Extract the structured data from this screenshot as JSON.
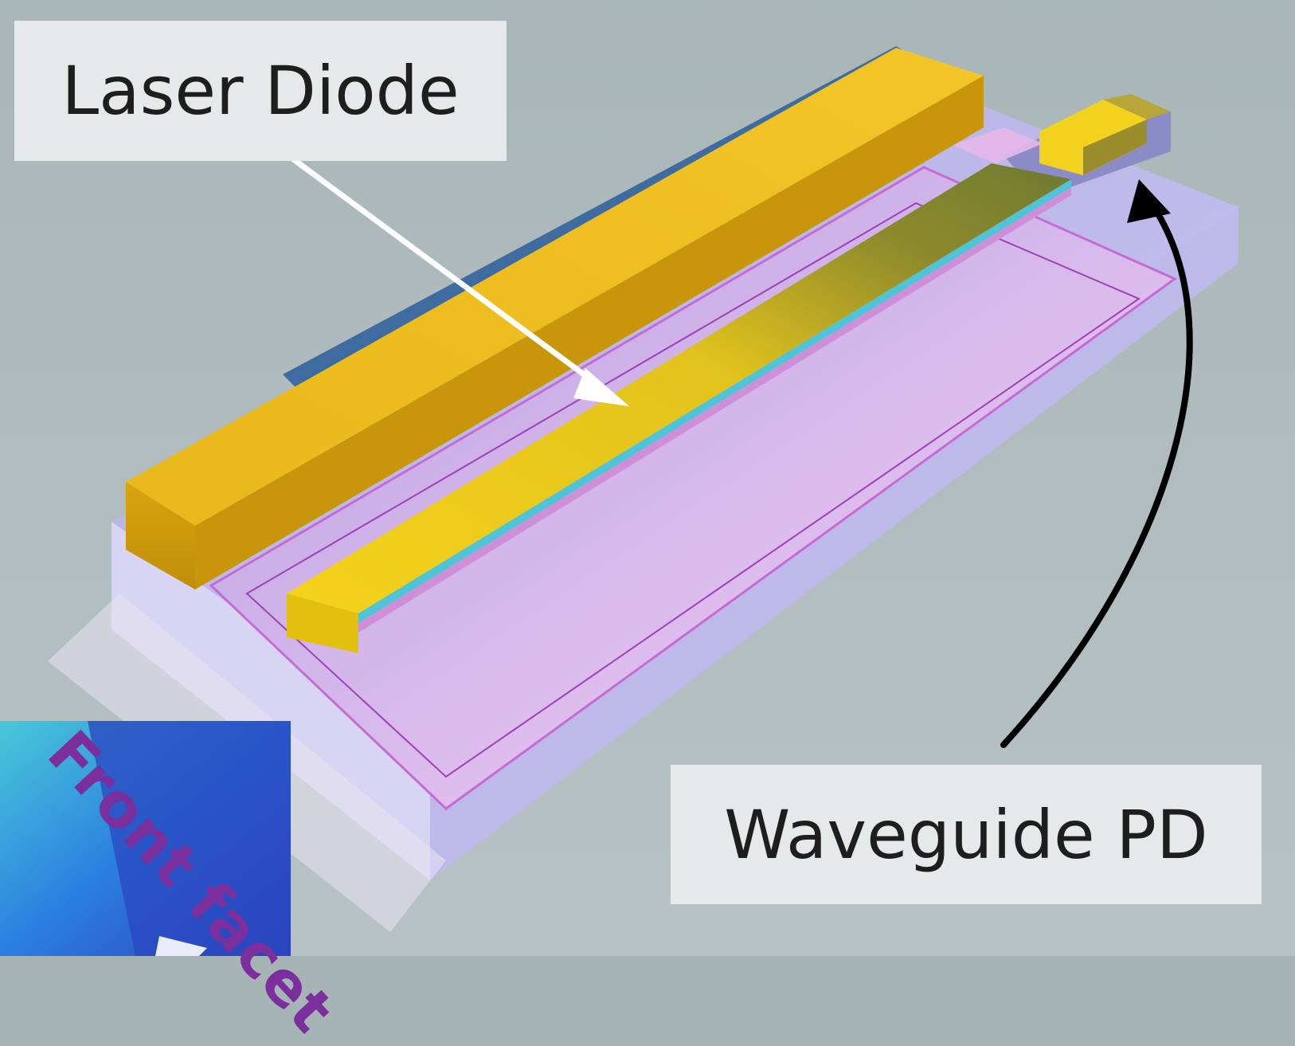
{
  "labels": {
    "laser_diode": "Laser Diode",
    "waveguide_pd": "Waveguide PD",
    "front_facet": "Front facet"
  },
  "colors": {
    "background": "#a6b4b6",
    "gold_electrode": "#e8b416",
    "substrate_lavender": "#c8c4ec",
    "waveguide_pink": "#f0c0ec",
    "laser_arrow": "#ffffff",
    "pd_arrow": "#000000",
    "facet_text": "#7a2f9c"
  }
}
